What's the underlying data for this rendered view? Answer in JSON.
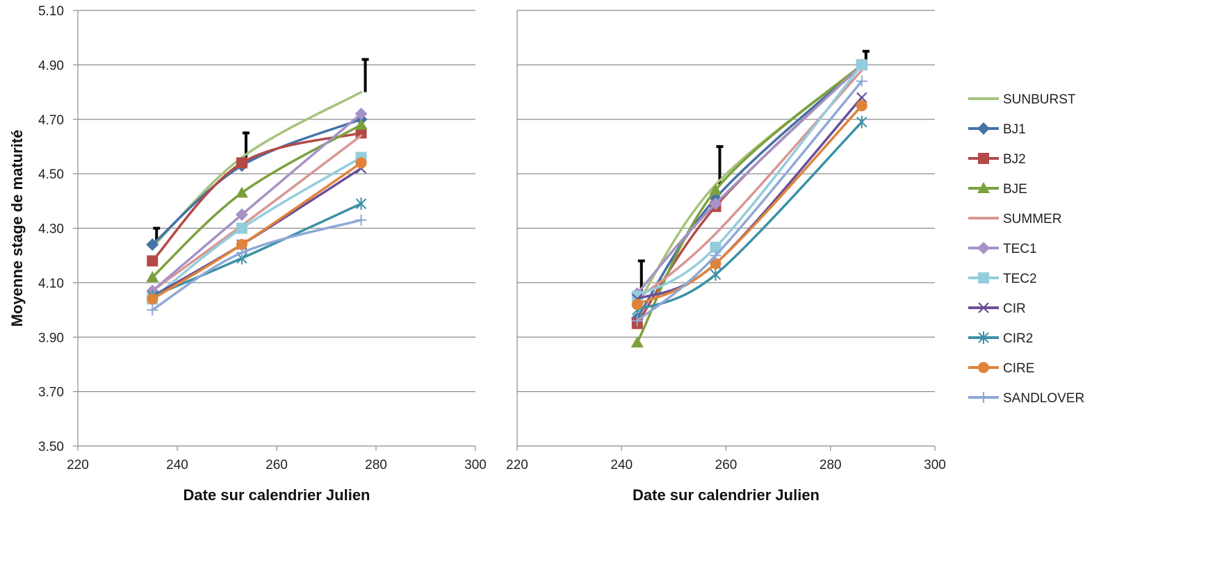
{
  "chart_data": [
    {
      "type": "line",
      "xlabel": "Date sur calendrier Julien",
      "ylabel": "Moyenne stage de maturité",
      "xlim": [
        220,
        300
      ],
      "ylim": [
        3.5,
        5.1
      ],
      "x_ticks": [
        "220",
        "240",
        "260",
        "280",
        "300"
      ],
      "y_ticks": [
        "3.50",
        "3.70",
        "3.90",
        "4.10",
        "4.30",
        "4.50",
        "4.70",
        "4.90",
        "5.10"
      ],
      "grid": "horizontal",
      "x": [
        235,
        253,
        277
      ],
      "series": [
        {
          "name": "SUNBURST",
          "values": [
            4.23,
            4.56,
            4.8
          ]
        },
        {
          "name": "BJ1",
          "values": [
            4.24,
            4.53,
            4.7
          ]
        },
        {
          "name": "BJ2",
          "values": [
            4.18,
            4.54,
            4.65
          ]
        },
        {
          "name": "BJE",
          "values": [
            4.12,
            4.43,
            4.68
          ]
        },
        {
          "name": "SUMMER",
          "values": [
            4.07,
            4.31,
            4.64
          ]
        },
        {
          "name": "TEC1",
          "values": [
            4.07,
            4.35,
            4.72
          ]
        },
        {
          "name": "TEC2",
          "values": [
            4.04,
            4.3,
            4.56
          ]
        },
        {
          "name": "CIR",
          "values": [
            4.05,
            4.24,
            4.52
          ]
        },
        {
          "name": "CIR2",
          "values": [
            4.05,
            4.19,
            4.39
          ]
        },
        {
          "name": "CIRE",
          "values": [
            4.04,
            4.24,
            4.54
          ]
        },
        {
          "name": "SANDLOVER",
          "values": [
            4.0,
            4.21,
            4.33
          ]
        }
      ],
      "error_bars": [
        {
          "x": 235,
          "low": 4.24,
          "high": 4.3
        },
        {
          "x": 253,
          "low": 4.56,
          "high": 4.65
        },
        {
          "x": 277,
          "low": 4.8,
          "high": 4.92
        }
      ]
    },
    {
      "type": "line",
      "xlabel": "Date sur calendrier Julien",
      "xlim": [
        220,
        300
      ],
      "ylim": [
        3.5,
        5.1
      ],
      "x_ticks": [
        "220",
        "240",
        "260",
        "280",
        "300"
      ],
      "grid": "horizontal",
      "x": [
        243,
        258,
        286
      ],
      "series": [
        {
          "name": "SUNBURST",
          "values": [
            4.02,
            4.46,
            4.9
          ]
        },
        {
          "name": "BJ1",
          "values": [
            3.97,
            4.41,
            4.9
          ]
        },
        {
          "name": "BJ2",
          "values": [
            3.95,
            4.38,
            4.9
          ]
        },
        {
          "name": "BJE",
          "values": [
            3.88,
            4.44,
            4.9
          ]
        },
        {
          "name": "SUMMER",
          "values": [
            4.04,
            4.28,
            4.88
          ]
        },
        {
          "name": "TEC1",
          "values": [
            4.06,
            4.39,
            4.9
          ]
        },
        {
          "name": "TEC2",
          "values": [
            4.05,
            4.23,
            4.9
          ]
        },
        {
          "name": "CIR",
          "values": [
            4.04,
            4.17,
            4.78
          ]
        },
        {
          "name": "CIR2",
          "values": [
            4.0,
            4.13,
            4.69
          ]
        },
        {
          "name": "CIRE",
          "values": [
            4.02,
            4.17,
            4.75
          ]
        },
        {
          "name": "SANDLOVER",
          "values": [
            3.96,
            4.2,
            4.84
          ]
        }
      ],
      "error_bars": [
        {
          "x": 243,
          "low": 4.02,
          "high": 4.18
        },
        {
          "x": 258,
          "low": 4.46,
          "high": 4.6
        },
        {
          "x": 286,
          "low": 4.9,
          "high": 4.95
        }
      ]
    }
  ],
  "legend": {
    "placement": "right",
    "items": [
      {
        "name": "SUNBURST",
        "color": "#A5C47C",
        "marker": "none"
      },
      {
        "name": "BJ1",
        "color": "#4572A7",
        "marker": "diamond"
      },
      {
        "name": "BJ2",
        "color": "#B24A48",
        "marker": "square"
      },
      {
        "name": "BJE",
        "color": "#7DA03E",
        "marker": "triangle"
      },
      {
        "name": "SUMMER",
        "color": "#D99694",
        "marker": "none"
      },
      {
        "name": "TEC1",
        "color": "#A692C6",
        "marker": "diamond"
      },
      {
        "name": "TEC2",
        "color": "#93CDDD",
        "marker": "square"
      },
      {
        "name": "CIR",
        "color": "#6A4F98",
        "marker": "x"
      },
      {
        "name": "CIR2",
        "color": "#3A91A6",
        "marker": "star"
      },
      {
        "name": "CIRE",
        "color": "#E0833A",
        "marker": "circle"
      },
      {
        "name": "SANDLOVER",
        "color": "#8FA8D6",
        "marker": "plus"
      }
    ]
  }
}
